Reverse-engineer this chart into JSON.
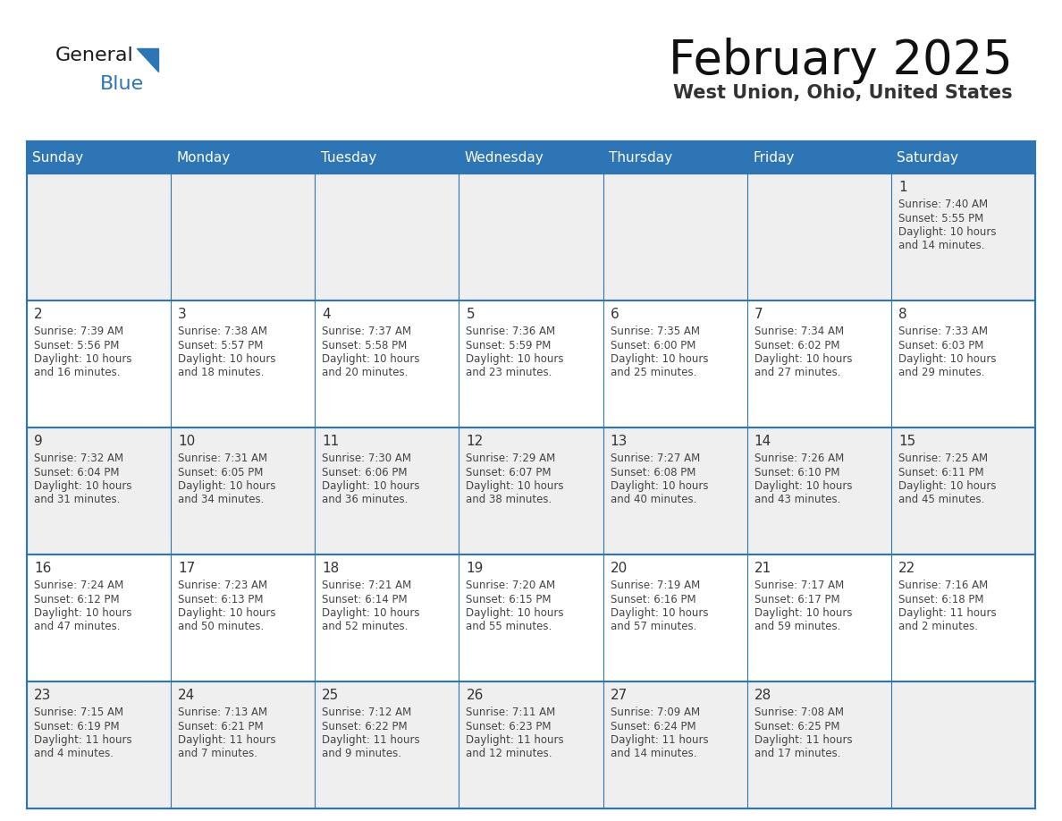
{
  "title": "February 2025",
  "subtitle": "West Union, Ohio, United States",
  "header_bg_color": "#2E75B6",
  "header_text_color": "#FFFFFF",
  "cell_bg_white": "#FFFFFF",
  "cell_bg_gray": "#EFEFEF",
  "cell_border_color": "#2E75B6",
  "day_number_color": "#333333",
  "cell_text_color": "#444444",
  "weekdays": [
    "Sunday",
    "Monday",
    "Tuesday",
    "Wednesday",
    "Thursday",
    "Friday",
    "Saturday"
  ],
  "calendar_data": [
    [
      {
        "day": "",
        "lines": []
      },
      {
        "day": "",
        "lines": []
      },
      {
        "day": "",
        "lines": []
      },
      {
        "day": "",
        "lines": []
      },
      {
        "day": "",
        "lines": []
      },
      {
        "day": "",
        "lines": []
      },
      {
        "day": "1",
        "lines": [
          "Sunrise: 7:40 AM",
          "Sunset: 5:55 PM",
          "Daylight: 10 hours",
          "and 14 minutes."
        ]
      }
    ],
    [
      {
        "day": "2",
        "lines": [
          "Sunrise: 7:39 AM",
          "Sunset: 5:56 PM",
          "Daylight: 10 hours",
          "and 16 minutes."
        ]
      },
      {
        "day": "3",
        "lines": [
          "Sunrise: 7:38 AM",
          "Sunset: 5:57 PM",
          "Daylight: 10 hours",
          "and 18 minutes."
        ]
      },
      {
        "day": "4",
        "lines": [
          "Sunrise: 7:37 AM",
          "Sunset: 5:58 PM",
          "Daylight: 10 hours",
          "and 20 minutes."
        ]
      },
      {
        "day": "5",
        "lines": [
          "Sunrise: 7:36 AM",
          "Sunset: 5:59 PM",
          "Daylight: 10 hours",
          "and 23 minutes."
        ]
      },
      {
        "day": "6",
        "lines": [
          "Sunrise: 7:35 AM",
          "Sunset: 6:00 PM",
          "Daylight: 10 hours",
          "and 25 minutes."
        ]
      },
      {
        "day": "7",
        "lines": [
          "Sunrise: 7:34 AM",
          "Sunset: 6:02 PM",
          "Daylight: 10 hours",
          "and 27 minutes."
        ]
      },
      {
        "day": "8",
        "lines": [
          "Sunrise: 7:33 AM",
          "Sunset: 6:03 PM",
          "Daylight: 10 hours",
          "and 29 minutes."
        ]
      }
    ],
    [
      {
        "day": "9",
        "lines": [
          "Sunrise: 7:32 AM",
          "Sunset: 6:04 PM",
          "Daylight: 10 hours",
          "and 31 minutes."
        ]
      },
      {
        "day": "10",
        "lines": [
          "Sunrise: 7:31 AM",
          "Sunset: 6:05 PM",
          "Daylight: 10 hours",
          "and 34 minutes."
        ]
      },
      {
        "day": "11",
        "lines": [
          "Sunrise: 7:30 AM",
          "Sunset: 6:06 PM",
          "Daylight: 10 hours",
          "and 36 minutes."
        ]
      },
      {
        "day": "12",
        "lines": [
          "Sunrise: 7:29 AM",
          "Sunset: 6:07 PM",
          "Daylight: 10 hours",
          "and 38 minutes."
        ]
      },
      {
        "day": "13",
        "lines": [
          "Sunrise: 7:27 AM",
          "Sunset: 6:08 PM",
          "Daylight: 10 hours",
          "and 40 minutes."
        ]
      },
      {
        "day": "14",
        "lines": [
          "Sunrise: 7:26 AM",
          "Sunset: 6:10 PM",
          "Daylight: 10 hours",
          "and 43 minutes."
        ]
      },
      {
        "day": "15",
        "lines": [
          "Sunrise: 7:25 AM",
          "Sunset: 6:11 PM",
          "Daylight: 10 hours",
          "and 45 minutes."
        ]
      }
    ],
    [
      {
        "day": "16",
        "lines": [
          "Sunrise: 7:24 AM",
          "Sunset: 6:12 PM",
          "Daylight: 10 hours",
          "and 47 minutes."
        ]
      },
      {
        "day": "17",
        "lines": [
          "Sunrise: 7:23 AM",
          "Sunset: 6:13 PM",
          "Daylight: 10 hours",
          "and 50 minutes."
        ]
      },
      {
        "day": "18",
        "lines": [
          "Sunrise: 7:21 AM",
          "Sunset: 6:14 PM",
          "Daylight: 10 hours",
          "and 52 minutes."
        ]
      },
      {
        "day": "19",
        "lines": [
          "Sunrise: 7:20 AM",
          "Sunset: 6:15 PM",
          "Daylight: 10 hours",
          "and 55 minutes."
        ]
      },
      {
        "day": "20",
        "lines": [
          "Sunrise: 7:19 AM",
          "Sunset: 6:16 PM",
          "Daylight: 10 hours",
          "and 57 minutes."
        ]
      },
      {
        "day": "21",
        "lines": [
          "Sunrise: 7:17 AM",
          "Sunset: 6:17 PM",
          "Daylight: 10 hours",
          "and 59 minutes."
        ]
      },
      {
        "day": "22",
        "lines": [
          "Sunrise: 7:16 AM",
          "Sunset: 6:18 PM",
          "Daylight: 11 hours",
          "and 2 minutes."
        ]
      }
    ],
    [
      {
        "day": "23",
        "lines": [
          "Sunrise: 7:15 AM",
          "Sunset: 6:19 PM",
          "Daylight: 11 hours",
          "and 4 minutes."
        ]
      },
      {
        "day": "24",
        "lines": [
          "Sunrise: 7:13 AM",
          "Sunset: 6:21 PM",
          "Daylight: 11 hours",
          "and 7 minutes."
        ]
      },
      {
        "day": "25",
        "lines": [
          "Sunrise: 7:12 AM",
          "Sunset: 6:22 PM",
          "Daylight: 11 hours",
          "and 9 minutes."
        ]
      },
      {
        "day": "26",
        "lines": [
          "Sunrise: 7:11 AM",
          "Sunset: 6:23 PM",
          "Daylight: 11 hours",
          "and 12 minutes."
        ]
      },
      {
        "day": "27",
        "lines": [
          "Sunrise: 7:09 AM",
          "Sunset: 6:24 PM",
          "Daylight: 11 hours",
          "and 14 minutes."
        ]
      },
      {
        "day": "28",
        "lines": [
          "Sunrise: 7:08 AM",
          "Sunset: 6:25 PM",
          "Daylight: 11 hours",
          "and 17 minutes."
        ]
      },
      {
        "day": "",
        "lines": []
      }
    ]
  ]
}
